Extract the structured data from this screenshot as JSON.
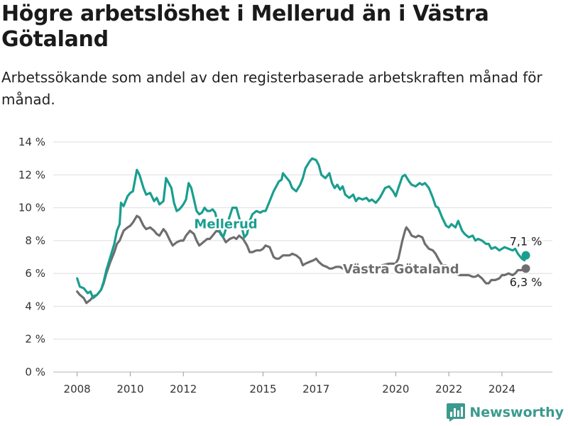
{
  "title": "Högre arbetslöshet i Mellerud än i Västra Götaland",
  "subtitle": "Arbetssökande som andel av den registerbaserade arbetskraften månad för månad.",
  "brand": {
    "name": "Newsworthy",
    "icon": "bar-chart-logo-icon",
    "color": "#3b9a8f"
  },
  "chart_data": {
    "type": "line",
    "title": "Högre arbetslöshet i Mellerud än i Västra Götaland",
    "subtitle": "Arbetssökande som andel av den registerbaserade arbetskraften månad för månad.",
    "xlabel": "",
    "ylabel": "",
    "ylim": [
      0,
      14
    ],
    "xlim": [
      2007.1,
      2025.9
    ],
    "yticks": [
      0,
      2,
      4,
      6,
      8,
      10,
      12,
      14
    ],
    "ytick_labels": [
      "0 %",
      "2 %",
      "4 %",
      "6 %",
      "8 %",
      "10 %",
      "12 %",
      "14 %"
    ],
    "xticks": [
      2008,
      2010,
      2012,
      2015,
      2017,
      2020,
      2022,
      2024
    ],
    "xtick_labels": [
      "2008",
      "2010",
      "2012",
      "2015",
      "2017",
      "2020",
      "2022",
      "2024"
    ],
    "grid": true,
    "series": [
      {
        "name": "Mellerud",
        "color": "#1a9e8f",
        "end_label": "7,1 %",
        "points": [
          [
            2008.0,
            5.7
          ],
          [
            2008.1,
            5.2
          ],
          [
            2008.25,
            5.1
          ],
          [
            2008.4,
            4.8
          ],
          [
            2008.5,
            4.9
          ],
          [
            2008.6,
            4.5
          ],
          [
            2008.75,
            4.7
          ],
          [
            2008.9,
            5.0
          ],
          [
            2009.0,
            5.5
          ],
          [
            2009.1,
            6.2
          ],
          [
            2009.25,
            7.0
          ],
          [
            2009.4,
            7.8
          ],
          [
            2009.5,
            8.6
          ],
          [
            2009.6,
            9.0
          ],
          [
            2009.65,
            10.3
          ],
          [
            2009.75,
            10.1
          ],
          [
            2009.9,
            10.7
          ],
          [
            2010.0,
            10.9
          ],
          [
            2010.1,
            11.0
          ],
          [
            2010.25,
            12.3
          ],
          [
            2010.35,
            12.0
          ],
          [
            2010.5,
            11.2
          ],
          [
            2010.6,
            10.8
          ],
          [
            2010.75,
            10.9
          ],
          [
            2010.9,
            10.4
          ],
          [
            2011.0,
            10.6
          ],
          [
            2011.1,
            10.2
          ],
          [
            2011.25,
            10.4
          ],
          [
            2011.35,
            11.8
          ],
          [
            2011.45,
            11.5
          ],
          [
            2011.55,
            11.2
          ],
          [
            2011.65,
            10.3
          ],
          [
            2011.75,
            9.8
          ],
          [
            2011.85,
            9.9
          ],
          [
            2011.95,
            10.1
          ],
          [
            2012.0,
            10.2
          ],
          [
            2012.1,
            10.5
          ],
          [
            2012.2,
            11.5
          ],
          [
            2012.3,
            11.2
          ],
          [
            2012.4,
            10.5
          ],
          [
            2012.5,
            9.8
          ],
          [
            2012.6,
            9.6
          ],
          [
            2012.7,
            9.7
          ],
          [
            2012.8,
            10.0
          ],
          [
            2012.9,
            9.8
          ],
          [
            2013.0,
            9.8
          ],
          [
            2013.1,
            9.9
          ],
          [
            2013.2,
            9.7
          ],
          [
            2013.3,
            9.0
          ],
          [
            2013.4,
            8.4
          ],
          [
            2013.5,
            8.2
          ],
          [
            2013.6,
            8.7
          ],
          [
            2013.75,
            9.5
          ],
          [
            2013.85,
            10.0
          ],
          [
            2014.0,
            10.0
          ],
          [
            2014.1,
            9.4
          ],
          [
            2014.2,
            8.8
          ],
          [
            2014.3,
            8.2
          ],
          [
            2014.4,
            8.4
          ],
          [
            2014.5,
            9.2
          ],
          [
            2014.6,
            9.6
          ],
          [
            2014.75,
            9.8
          ],
          [
            2014.9,
            9.7
          ],
          [
            2015.0,
            9.8
          ],
          [
            2015.1,
            9.8
          ],
          [
            2015.25,
            10.4
          ],
          [
            2015.4,
            11.0
          ],
          [
            2015.5,
            11.3
          ],
          [
            2015.6,
            11.6
          ],
          [
            2015.7,
            11.7
          ],
          [
            2015.75,
            12.1
          ],
          [
            2015.85,
            11.9
          ],
          [
            2016.0,
            11.6
          ],
          [
            2016.1,
            11.2
          ],
          [
            2016.25,
            11.0
          ],
          [
            2016.4,
            11.4
          ],
          [
            2016.5,
            11.8
          ],
          [
            2016.6,
            12.4
          ],
          [
            2016.75,
            12.8
          ],
          [
            2016.85,
            13.0
          ],
          [
            2017.0,
            12.9
          ],
          [
            2017.1,
            12.6
          ],
          [
            2017.2,
            12.0
          ],
          [
            2017.35,
            11.8
          ],
          [
            2017.5,
            12.1
          ],
          [
            2017.6,
            11.5
          ],
          [
            2017.7,
            11.2
          ],
          [
            2017.8,
            11.4
          ],
          [
            2017.9,
            11.1
          ],
          [
            2018.0,
            11.3
          ],
          [
            2018.1,
            10.8
          ],
          [
            2018.25,
            10.6
          ],
          [
            2018.4,
            10.8
          ],
          [
            2018.5,
            10.4
          ],
          [
            2018.6,
            10.6
          ],
          [
            2018.75,
            10.5
          ],
          [
            2018.9,
            10.6
          ],
          [
            2019.0,
            10.4
          ],
          [
            2019.1,
            10.5
          ],
          [
            2019.25,
            10.3
          ],
          [
            2019.4,
            10.6
          ],
          [
            2019.5,
            10.9
          ],
          [
            2019.6,
            11.2
          ],
          [
            2019.75,
            11.3
          ],
          [
            2019.9,
            11.0
          ],
          [
            2020.0,
            10.7
          ],
          [
            2020.1,
            11.2
          ],
          [
            2020.25,
            11.9
          ],
          [
            2020.35,
            12.0
          ],
          [
            2020.5,
            11.6
          ],
          [
            2020.6,
            11.4
          ],
          [
            2020.75,
            11.3
          ],
          [
            2020.9,
            11.5
          ],
          [
            2021.0,
            11.4
          ],
          [
            2021.1,
            11.5
          ],
          [
            2021.25,
            11.2
          ],
          [
            2021.4,
            10.6
          ],
          [
            2021.5,
            10.1
          ],
          [
            2021.6,
            10.0
          ],
          [
            2021.75,
            9.4
          ],
          [
            2021.9,
            8.9
          ],
          [
            2022.0,
            8.8
          ],
          [
            2022.1,
            9.0
          ],
          [
            2022.25,
            8.8
          ],
          [
            2022.35,
            9.2
          ],
          [
            2022.5,
            8.6
          ],
          [
            2022.6,
            8.4
          ],
          [
            2022.75,
            8.2
          ],
          [
            2022.9,
            8.3
          ],
          [
            2023.0,
            8.0
          ],
          [
            2023.1,
            8.1
          ],
          [
            2023.25,
            8.0
          ],
          [
            2023.4,
            7.8
          ],
          [
            2023.5,
            7.8
          ],
          [
            2023.6,
            7.5
          ],
          [
            2023.75,
            7.6
          ],
          [
            2023.9,
            7.4
          ],
          [
            2024.0,
            7.5
          ],
          [
            2024.1,
            7.6
          ],
          [
            2024.25,
            7.5
          ],
          [
            2024.4,
            7.4
          ],
          [
            2024.5,
            7.5
          ],
          [
            2024.6,
            7.2
          ],
          [
            2024.75,
            6.9
          ],
          [
            2024.85,
            6.8
          ],
          [
            2024.9,
            7.1
          ]
        ]
      },
      {
        "name": "Västra Götaland",
        "color": "#6e6e70",
        "end_label": "6,3 %",
        "points": [
          [
            2008.0,
            4.9
          ],
          [
            2008.1,
            4.7
          ],
          [
            2008.25,
            4.5
          ],
          [
            2008.35,
            4.2
          ],
          [
            2008.5,
            4.4
          ],
          [
            2008.6,
            4.6
          ],
          [
            2008.75,
            4.7
          ],
          [
            2008.9,
            5.0
          ],
          [
            2009.0,
            5.4
          ],
          [
            2009.1,
            6.0
          ],
          [
            2009.25,
            6.7
          ],
          [
            2009.4,
            7.3
          ],
          [
            2009.5,
            7.8
          ],
          [
            2009.6,
            8.0
          ],
          [
            2009.75,
            8.6
          ],
          [
            2009.9,
            8.8
          ],
          [
            2010.0,
            8.9
          ],
          [
            2010.1,
            9.1
          ],
          [
            2010.25,
            9.5
          ],
          [
            2010.35,
            9.4
          ],
          [
            2010.5,
            8.9
          ],
          [
            2010.6,
            8.7
          ],
          [
            2010.75,
            8.8
          ],
          [
            2010.9,
            8.6
          ],
          [
            2011.0,
            8.4
          ],
          [
            2011.1,
            8.3
          ],
          [
            2011.25,
            8.7
          ],
          [
            2011.35,
            8.5
          ],
          [
            2011.5,
            8.0
          ],
          [
            2011.6,
            7.7
          ],
          [
            2011.75,
            7.9
          ],
          [
            2011.9,
            8.0
          ],
          [
            2012.0,
            8.0
          ],
          [
            2012.1,
            8.3
          ],
          [
            2012.25,
            8.6
          ],
          [
            2012.4,
            8.4
          ],
          [
            2012.5,
            8.0
          ],
          [
            2012.6,
            7.7
          ],
          [
            2012.75,
            7.9
          ],
          [
            2012.9,
            8.1
          ],
          [
            2013.0,
            8.1
          ],
          [
            2013.1,
            8.3
          ],
          [
            2013.25,
            8.6
          ],
          [
            2013.4,
            8.5
          ],
          [
            2013.5,
            8.2
          ],
          [
            2013.6,
            7.9
          ],
          [
            2013.75,
            8.1
          ],
          [
            2013.9,
            8.2
          ],
          [
            2014.0,
            8.1
          ],
          [
            2014.1,
            8.3
          ],
          [
            2014.25,
            8.1
          ],
          [
            2014.4,
            7.7
          ],
          [
            2014.5,
            7.3
          ],
          [
            2014.6,
            7.3
          ],
          [
            2014.75,
            7.4
          ],
          [
            2014.9,
            7.4
          ],
          [
            2015.0,
            7.5
          ],
          [
            2015.1,
            7.7
          ],
          [
            2015.25,
            7.6
          ],
          [
            2015.4,
            7.0
          ],
          [
            2015.5,
            6.9
          ],
          [
            2015.6,
            6.9
          ],
          [
            2015.75,
            7.1
          ],
          [
            2015.9,
            7.1
          ],
          [
            2016.0,
            7.1
          ],
          [
            2016.1,
            7.2
          ],
          [
            2016.25,
            7.1
          ],
          [
            2016.4,
            6.9
          ],
          [
            2016.5,
            6.5
          ],
          [
            2016.6,
            6.6
          ],
          [
            2016.75,
            6.7
          ],
          [
            2016.9,
            6.8
          ],
          [
            2017.0,
            6.9
          ],
          [
            2017.1,
            6.7
          ],
          [
            2017.25,
            6.5
          ],
          [
            2017.4,
            6.4
          ],
          [
            2017.5,
            6.3
          ],
          [
            2017.6,
            6.3
          ],
          [
            2017.75,
            6.4
          ],
          [
            2017.9,
            6.4
          ],
          [
            2018.0,
            6.3
          ],
          [
            2018.1,
            6.3
          ],
          [
            2018.25,
            6.3
          ],
          [
            2018.5,
            6.4
          ],
          [
            2018.75,
            6.3
          ],
          [
            2019.0,
            6.4
          ],
          [
            2019.25,
            6.4
          ],
          [
            2019.5,
            6.5
          ],
          [
            2019.75,
            6.6
          ],
          [
            2019.9,
            6.6
          ],
          [
            2020.0,
            6.6
          ],
          [
            2020.1,
            6.9
          ],
          [
            2020.25,
            8.0
          ],
          [
            2020.35,
            8.6
          ],
          [
            2020.4,
            8.8
          ],
          [
            2020.5,
            8.6
          ],
          [
            2020.6,
            8.3
          ],
          [
            2020.75,
            8.2
          ],
          [
            2020.85,
            8.3
          ],
          [
            2021.0,
            8.2
          ],
          [
            2021.1,
            7.8
          ],
          [
            2021.25,
            7.5
          ],
          [
            2021.4,
            7.4
          ],
          [
            2021.5,
            7.2
          ],
          [
            2021.6,
            6.9
          ],
          [
            2021.75,
            6.5
          ],
          [
            2021.9,
            6.5
          ],
          [
            2022.0,
            6.4
          ],
          [
            2022.1,
            6.4
          ],
          [
            2022.25,
            6.0
          ],
          [
            2022.4,
            5.9
          ],
          [
            2022.5,
            5.9
          ],
          [
            2022.75,
            5.9
          ],
          [
            2022.9,
            5.8
          ],
          [
            2023.0,
            5.8
          ],
          [
            2023.1,
            5.9
          ],
          [
            2023.25,
            5.7
          ],
          [
            2023.4,
            5.4
          ],
          [
            2023.5,
            5.4
          ],
          [
            2023.6,
            5.6
          ],
          [
            2023.75,
            5.6
          ],
          [
            2023.9,
            5.7
          ],
          [
            2024.0,
            5.9
          ],
          [
            2024.1,
            5.9
          ],
          [
            2024.25,
            6.0
          ],
          [
            2024.4,
            5.9
          ],
          [
            2024.5,
            6.0
          ],
          [
            2024.6,
            6.2
          ],
          [
            2024.75,
            6.2
          ],
          [
            2024.9,
            6.3
          ]
        ]
      }
    ]
  }
}
